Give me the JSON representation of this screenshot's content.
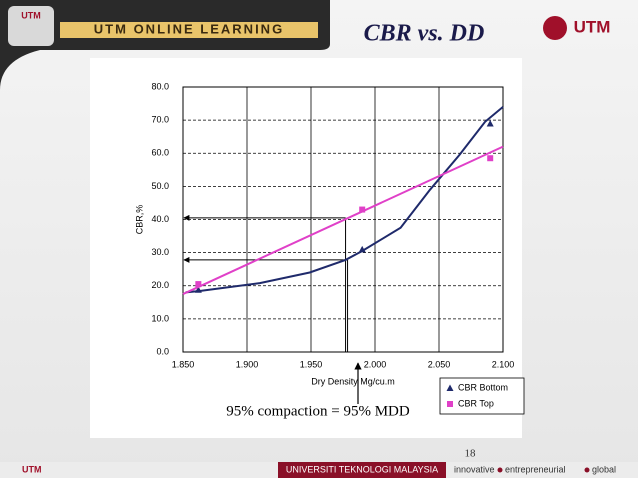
{
  "header": {
    "banner": "UTM ONLINE LEARNING",
    "logo": "UTM",
    "right_logo": "UTM",
    "title": "CBR vs. DD"
  },
  "chart_data": {
    "type": "line",
    "xlabel": "Dry Density Mg/cu.m",
    "ylabel": "CBR,%",
    "xlim": [
      1.85,
      2.1
    ],
    "ylim": [
      0,
      80
    ],
    "xticks": [
      {
        "value": 1.85,
        "label": "1.850"
      },
      {
        "value": 1.9,
        "label": "1.900"
      },
      {
        "value": 1.95,
        "label": "1.950"
      },
      {
        "value": 2.0,
        "label": "2.000"
      },
      {
        "value": 2.05,
        "label": "2.050"
      },
      {
        "value": 2.1,
        "label": "2.100"
      }
    ],
    "yticks": [
      {
        "value": 0,
        "label": "0.0"
      },
      {
        "value": 10,
        "label": "10.0"
      },
      {
        "value": 20,
        "label": "20.0"
      },
      {
        "value": 30,
        "label": "30.0"
      },
      {
        "value": 40,
        "label": "40.0"
      },
      {
        "value": 50,
        "label": "50.0"
      },
      {
        "value": 60,
        "label": "60.0"
      },
      {
        "value": 70,
        "label": "70.0"
      },
      {
        "value": 80,
        "label": "80.0"
      }
    ],
    "grid": true,
    "legend": "lower right",
    "series": [
      {
        "name": "CBR Bottom",
        "color": "#1f2a6b",
        "marker": "triangle",
        "x": [
          1.852,
          1.863,
          1.91,
          1.949,
          1.977,
          1.99,
          2.02,
          2.043,
          2.066,
          2.086,
          2.1
        ],
        "values": [
          18,
          18.4,
          20.8,
          24,
          27.8,
          30.5,
          37.5,
          49,
          59.5,
          69.5,
          74
        ],
        "markers": {
          "x": [
            1.862,
            1.99,
            2.09
          ],
          "values": [
            18.8,
            31,
            69
          ]
        }
      },
      {
        "name": "CBR Top",
        "color": "#e040c8",
        "marker": "square",
        "x": [
          1.85,
          2.1
        ],
        "values": [
          17.5,
          62
        ],
        "markers": {
          "x": [
            1.862,
            1.99,
            2.09
          ],
          "values": [
            20.5,
            43,
            58.5
          ]
        }
      }
    ],
    "guides": [
      {
        "x": 1.977,
        "y": 40.5
      },
      {
        "x": 1.977,
        "y": 27.8
      }
    ],
    "annotation": "95% compaction = 95% MDD"
  },
  "page_number": "18",
  "footer": {
    "logo": "UTM",
    "university": "UNIVERSITI TEKNOLOGI MALAYSIA",
    "tagline": [
      "innovative",
      "entrepreneurial",
      "global"
    ]
  }
}
